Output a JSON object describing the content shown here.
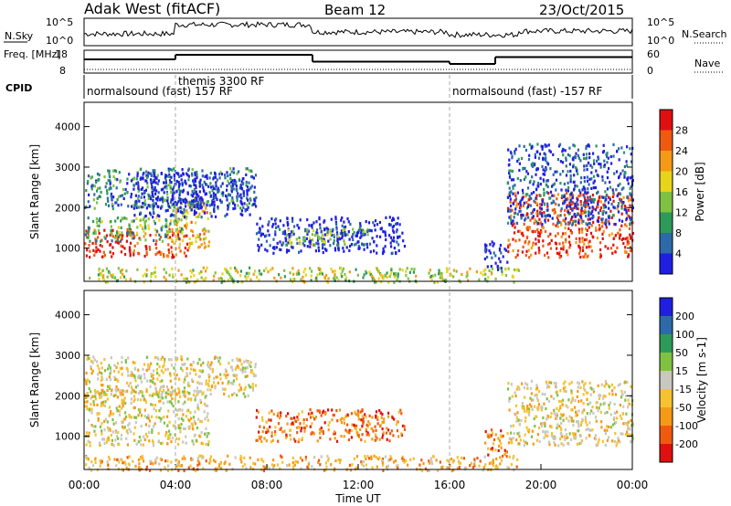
{
  "header": {
    "title": "Adak West (fitACF)",
    "beam": "Beam 12",
    "date": "23/Oct/2015"
  },
  "chart_data": [
    {
      "type": "line",
      "name": "nsky-nsearch-panel",
      "ylabel_left": "N.Sky",
      "ylabel_right": "N.Search",
      "left_ticks": [
        "10^5",
        "10^0"
      ],
      "right_ticks": [
        "10^5",
        "10^0"
      ],
      "series": [
        {
          "name": "N.Sky",
          "style": "solid"
        },
        {
          "name": "N.Search",
          "style": "dotted"
        }
      ]
    },
    {
      "type": "line",
      "name": "freq-nave-panel",
      "ylabel_left": "Freq. [MHz]",
      "ylabel_right": "Nave",
      "left_ticks": [
        18,
        8
      ],
      "right_ticks": [
        60,
        0
      ],
      "freq_segments": [
        {
          "x0": 0,
          "x1": 4,
          "y": 14
        },
        {
          "x0": 4,
          "x1": 10,
          "y": 16
        },
        {
          "x0": 10,
          "x1": 16,
          "y": 13
        },
        {
          "x0": 16,
          "x1": 18,
          "y": 12
        },
        {
          "x0": 18,
          "x1": 24,
          "y": 15
        }
      ]
    },
    {
      "type": "table",
      "name": "cpid-panel",
      "label": "CPID",
      "segments": [
        {
          "start": 0,
          "text": "normalsound (fast) 157 RF"
        },
        {
          "start": 4,
          "text": "themis 3300 RF"
        },
        {
          "start": 16,
          "text": "normalsound (fast) -157 RF"
        }
      ]
    },
    {
      "type": "heatmap",
      "name": "power-panel",
      "ylabel": "Slant Range [km]",
      "y_ticks": [
        1000,
        2000,
        3000,
        4000
      ],
      "ylim": [
        180,
        4600
      ],
      "xlim": [
        0,
        24
      ],
      "colorbar": {
        "label": "Power [dB]",
        "ticks": [
          4,
          8,
          12,
          16,
          20,
          24,
          28
        ],
        "colors": [
          "#1f1fe0",
          "#2c6aa8",
          "#2e9a5a",
          "#7fc242",
          "#e8d41a",
          "#f59a16",
          "#f05a10",
          "#e01010"
        ]
      },
      "blobs": [
        {
          "x0": 0,
          "x1": 4.5,
          "y0": 800,
          "y1": 1500,
          "c": 7
        },
        {
          "x0": 0,
          "x1": 4.3,
          "y0": 1200,
          "y1": 1800,
          "c": 3
        },
        {
          "x0": 3.8,
          "x1": 5.5,
          "y0": 1000,
          "y1": 2200,
          "c": 5
        },
        {
          "x0": 0,
          "x1": 7.5,
          "y0": 2000,
          "y1": 3000,
          "c": 2
        },
        {
          "x0": 2,
          "x1": 7.5,
          "y0": 1800,
          "y1": 2900,
          "c": 0
        },
        {
          "x0": 7.5,
          "x1": 14,
          "y0": 900,
          "y1": 1800,
          "c": 0
        },
        {
          "x0": 8.5,
          "x1": 12.5,
          "y0": 1100,
          "y1": 1500,
          "c": 3
        },
        {
          "x0": 18.5,
          "x1": 24,
          "y0": 800,
          "y1": 2400,
          "c": 7
        },
        {
          "x0": 18.5,
          "x1": 24,
          "y0": 1600,
          "y1": 3600,
          "c": 1
        },
        {
          "x0": 17.5,
          "x1": 18.5,
          "y0": 500,
          "y1": 1200,
          "c": 0
        },
        {
          "x0": 0,
          "x1": 19,
          "y0": 180,
          "y1": 550,
          "c": 4
        }
      ]
    },
    {
      "type": "heatmap",
      "name": "velocity-panel",
      "ylabel": "Slant Range [km]",
      "y_ticks": [
        1000,
        2000,
        3000,
        4000
      ],
      "ylim": [
        180,
        4600
      ],
      "xlim": [
        0,
        24
      ],
      "xlabel": "Time UT",
      "x_ticks": [
        "00:00",
        "04:00",
        "08:00",
        "12:00",
        "16:00",
        "20:00",
        "00:00"
      ],
      "colorbar": {
        "label": "Velocity [m s-1]",
        "ticks": [
          -200,
          -100,
          -50,
          -15,
          15,
          50,
          100,
          200
        ],
        "colors": [
          "#e01010",
          "#f05a10",
          "#f59a16",
          "#f5c232",
          "#c8c8c0",
          "#7fc242",
          "#2e9a5a",
          "#2c6aa8",
          "#1f1fe0"
        ]
      },
      "blobs": [
        {
          "x0": 0,
          "x1": 5.5,
          "y0": 800,
          "y1": 2200,
          "c": 4
        },
        {
          "x0": 0,
          "x1": 7.5,
          "y0": 2000,
          "y1": 3000,
          "c": 4
        },
        {
          "x0": 7.5,
          "x1": 14,
          "y0": 900,
          "y1": 1700,
          "c": 2
        },
        {
          "x0": 18.5,
          "x1": 24,
          "y0": 800,
          "y1": 2400,
          "c": 4
        },
        {
          "x0": 17.5,
          "x1": 18.5,
          "y0": 500,
          "y1": 1200,
          "c": 2
        },
        {
          "x0": 0,
          "x1": 19,
          "y0": 180,
          "y1": 550,
          "c": 3
        }
      ]
    }
  ]
}
